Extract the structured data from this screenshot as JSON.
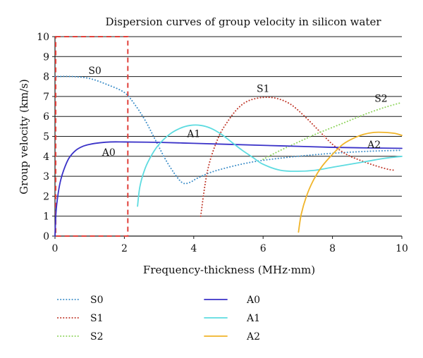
{
  "chart_data": {
    "type": "line",
    "title": "Dispersion curves of group velocity in silicon water",
    "xlabel": "Frequency-thickness (MHz·mm)",
    "ylabel": "Group velocity (km/s)",
    "xlim": [
      0,
      10
    ],
    "ylim": [
      0,
      10
    ],
    "xticks": [
      0,
      2,
      4,
      6,
      8,
      10
    ],
    "yticks": [
      0,
      1,
      2,
      3,
      4,
      5,
      6,
      7,
      8,
      9,
      10
    ],
    "grid": "horizontal",
    "highlight_region": {
      "x": [
        0,
        2.1
      ],
      "y": [
        0,
        10
      ],
      "color": "#e0403a"
    },
    "series": [
      {
        "name": "S0",
        "style": "dotted",
        "color": "#3f8fc9",
        "x": [
          0,
          0.5,
          1.0,
          1.5,
          2.0,
          2.3,
          2.6,
          2.9,
          3.2,
          3.5,
          3.7,
          3.9,
          4.1,
          4.5,
          5.0,
          5.5,
          6.0,
          7.0,
          8.0,
          9.0,
          10.0
        ],
        "y": [
          8.0,
          8.0,
          7.9,
          7.6,
          7.2,
          6.6,
          5.8,
          4.8,
          3.8,
          3.0,
          2.65,
          2.7,
          2.9,
          3.2,
          3.45,
          3.65,
          3.8,
          4.0,
          4.15,
          4.25,
          4.3
        ]
      },
      {
        "name": "S1",
        "style": "dotted",
        "color": "#c0392b",
        "x": [
          4.2,
          4.4,
          4.7,
          5.0,
          5.3,
          5.6,
          6.0,
          6.4,
          6.8,
          7.2,
          7.6,
          8.0,
          8.4,
          8.8,
          9.2,
          9.6,
          9.8
        ],
        "y": [
          1.0,
          3.3,
          4.9,
          5.8,
          6.45,
          6.8,
          6.95,
          6.9,
          6.6,
          6.0,
          5.3,
          4.6,
          4.1,
          3.8,
          3.55,
          3.35,
          3.3
        ]
      },
      {
        "name": "S2",
        "style": "dotted",
        "color": "#8fd45e",
        "x": [
          6.0,
          6.5,
          7.0,
          7.5,
          8.0,
          8.5,
          9.0,
          9.5,
          10.0
        ],
        "y": [
          3.85,
          4.3,
          4.7,
          5.1,
          5.45,
          5.8,
          6.15,
          6.45,
          6.7
        ]
      },
      {
        "name": "A0",
        "style": "solid",
        "color": "#3a32c8",
        "x": [
          0,
          0.03,
          0.08,
          0.15,
          0.25,
          0.4,
          0.6,
          0.8,
          1.0,
          1.3,
          1.6,
          2.0,
          3.0,
          4.0,
          5.0,
          6.0,
          7.0,
          8.0,
          9.0,
          10.0
        ],
        "y": [
          0,
          1.2,
          2.0,
          2.7,
          3.3,
          3.9,
          4.3,
          4.5,
          4.6,
          4.68,
          4.72,
          4.72,
          4.7,
          4.65,
          4.6,
          4.55,
          4.5,
          4.45,
          4.42,
          4.4
        ]
      },
      {
        "name": "A1",
        "style": "solid",
        "color": "#5ddbe0",
        "x": [
          2.38,
          2.45,
          2.6,
          2.8,
          3.0,
          3.3,
          3.6,
          3.9,
          4.2,
          4.5,
          4.8,
          5.1,
          5.4,
          5.7,
          6.0,
          6.5,
          7.0,
          7.5,
          8.0,
          8.5,
          9.0,
          9.5,
          10.0
        ],
        "y": [
          1.5,
          2.5,
          3.4,
          4.1,
          4.6,
          5.1,
          5.4,
          5.55,
          5.55,
          5.4,
          5.1,
          4.7,
          4.3,
          3.95,
          3.6,
          3.3,
          3.25,
          3.3,
          3.45,
          3.6,
          3.75,
          3.9,
          4.0
        ]
      },
      {
        "name": "A2",
        "style": "solid",
        "color": "#f0b429",
        "x": [
          7.02,
          7.1,
          7.25,
          7.45,
          7.7,
          8.0,
          8.3,
          8.6,
          8.9,
          9.2,
          9.5,
          9.8,
          10.0
        ],
        "y": [
          0.2,
          1.1,
          2.0,
          2.8,
          3.5,
          4.1,
          4.6,
          4.9,
          5.1,
          5.2,
          5.2,
          5.15,
          5.05
        ]
      }
    ],
    "curve_labels": [
      {
        "text": "S0",
        "x": 1.15,
        "y": 8.3
      },
      {
        "text": "S1",
        "x": 6.0,
        "y": 7.4
      },
      {
        "text": "S2",
        "x": 9.4,
        "y": 6.9
      },
      {
        "text": "A0",
        "x": 1.55,
        "y": 4.2
      },
      {
        "text": "A1",
        "x": 4.0,
        "y": 5.15
      },
      {
        "text": "A2",
        "x": 9.2,
        "y": 4.6
      }
    ],
    "legend": {
      "placement": "bottom",
      "entries": [
        "S0",
        "S1",
        "S2",
        "A0",
        "A1",
        "A2"
      ]
    }
  }
}
